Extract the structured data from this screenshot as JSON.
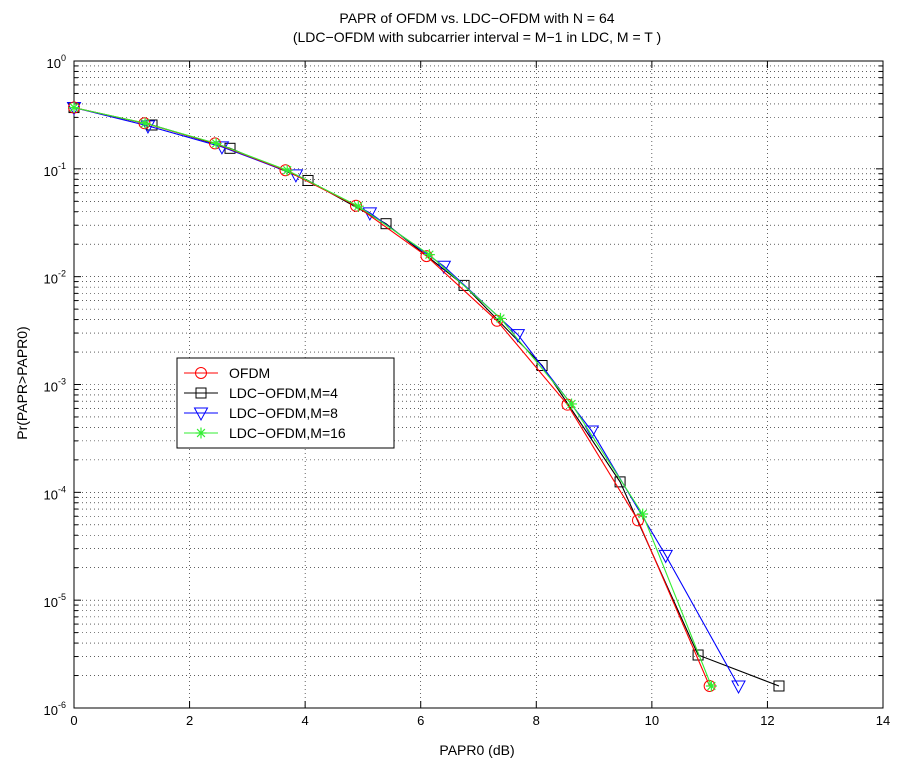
{
  "chart_data": {
    "type": "line",
    "title": "PAPR of OFDM vs. LDC−OFDM  with N = 64",
    "subtitle": "(LDC−OFDM with subcarrier interval = M−1 in LDC, M = T )",
    "xlabel": "PAPR0 (dB)",
    "ylabel": "Pr(PAPR>PAPR0)",
    "xlim": [
      0,
      14
    ],
    "ylim": [
      1e-06,
      1
    ],
    "yscale": "log",
    "grid": true,
    "legend_position": "center-left",
    "x_tick_labels": [
      "0",
      "2",
      "4",
      "6",
      "8",
      "10",
      "12",
      "14"
    ],
    "y_tick_labels": [
      {
        "base": "10",
        "exp": "0"
      },
      {
        "base": "10",
        "exp": "-1"
      },
      {
        "base": "10",
        "exp": "-2"
      },
      {
        "base": "10",
        "exp": "-3"
      },
      {
        "base": "10",
        "exp": "-4"
      },
      {
        "base": "10",
        "exp": "-5"
      },
      {
        "base": "10",
        "exp": "-6"
      }
    ],
    "series": [
      {
        "name": "OFDM",
        "color": "#ff0000",
        "marker": "circle",
        "x": [
          0,
          1.22,
          2.44,
          3.66,
          4.88,
          6.1,
          7.32,
          8.54,
          9.76,
          11.0
        ],
        "y": [
          0.37,
          0.265,
          0.172,
          0.097,
          0.0455,
          0.0155,
          0.0039,
          0.00065,
          5.5e-05,
          1.6e-06
        ]
      },
      {
        "name": "LDC−OFDM,M=4",
        "color": "#000000",
        "marker": "square",
        "x": [
          0,
          1.35,
          2.7,
          4.05,
          5.4,
          6.75,
          8.1,
          9.45,
          10.8,
          12.2
        ],
        "y": [
          0.37,
          0.255,
          0.155,
          0.078,
          0.031,
          0.0083,
          0.0015,
          0.000125,
          3.1e-06,
          1.6e-06
        ]
      },
      {
        "name": "LDC−OFDM,M=8",
        "color": "#0000ff",
        "marker": "triangle-down",
        "x": [
          0,
          1.28,
          2.56,
          3.84,
          5.12,
          6.4,
          7.68,
          8.96,
          10.24,
          11.5
        ],
        "y": [
          0.37,
          0.25,
          0.16,
          0.088,
          0.039,
          0.0125,
          0.0029,
          0.00037,
          2.6e-05,
          1.6e-06
        ]
      },
      {
        "name": "LDC−OFDM,M=16",
        "color": "#33ee33",
        "marker": "star",
        "x": [
          0,
          1.23,
          2.46,
          3.69,
          4.92,
          6.15,
          7.38,
          8.61,
          9.84,
          11.03
        ],
        "y": [
          0.37,
          0.265,
          0.172,
          0.097,
          0.045,
          0.016,
          0.0041,
          0.00066,
          6.3e-05,
          1.6e-06
        ]
      }
    ]
  }
}
